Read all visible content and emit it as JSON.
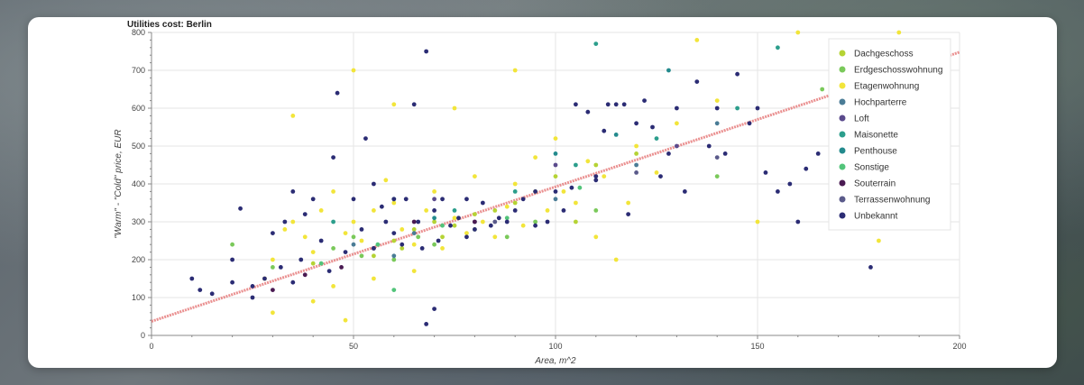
{
  "chart_data": {
    "type": "scatter",
    "title": "Utilities cost: Berlin",
    "xlabel": "Area, m^2",
    "ylabel": "\"Warm\" - \"Cold\" price, EUR",
    "xlim": [
      0,
      200
    ],
    "ylim": [
      0,
      800
    ],
    "x_ticks": [
      "0",
      "50",
      "100",
      "150",
      "200"
    ],
    "y_ticks": [
      "0",
      "100",
      "200",
      "300",
      "400",
      "500",
      "600",
      "700",
      "800"
    ],
    "grid": true,
    "legend_position": "top-right",
    "trendline": {
      "x": [
        0,
        200
      ],
      "y": [
        37,
        748
      ],
      "color": "#e36b6b"
    },
    "series": [
      {
        "name": "Dachgeschoss",
        "color": "#b5d334",
        "points": [
          [
            40,
            190
          ],
          [
            55,
            210
          ],
          [
            60,
            250
          ],
          [
            65,
            280
          ],
          [
            70,
            300
          ],
          [
            75,
            290
          ],
          [
            80,
            320
          ],
          [
            90,
            350
          ],
          [
            95,
            380
          ],
          [
            100,
            420
          ],
          [
            110,
            450
          ],
          [
            120,
            480
          ],
          [
            62,
            230
          ],
          [
            72,
            260
          ],
          [
            85,
            330
          ],
          [
            105,
            300
          ]
        ]
      },
      {
        "name": "Erdgeschosswohnung",
        "color": "#7ac95a",
        "points": [
          [
            20,
            240
          ],
          [
            30,
            180
          ],
          [
            45,
            230
          ],
          [
            50,
            260
          ],
          [
            60,
            200
          ],
          [
            70,
            240
          ],
          [
            80,
            280
          ],
          [
            95,
            300
          ],
          [
            110,
            330
          ],
          [
            140,
            420
          ],
          [
            166,
            650
          ],
          [
            52,
            210
          ],
          [
            66,
            260
          ],
          [
            88,
            260
          ]
        ]
      },
      {
        "name": "Etagenwohnung",
        "color": "#f2e53a",
        "points": [
          [
            28,
            150
          ],
          [
            30,
            200
          ],
          [
            33,
            280
          ],
          [
            35,
            300
          ],
          [
            38,
            260
          ],
          [
            40,
            220
          ],
          [
            42,
            330
          ],
          [
            45,
            380
          ],
          [
            48,
            270
          ],
          [
            50,
            300
          ],
          [
            52,
            250
          ],
          [
            55,
            330
          ],
          [
            58,
            410
          ],
          [
            60,
            350
          ],
          [
            62,
            280
          ],
          [
            65,
            240
          ],
          [
            68,
            330
          ],
          [
            70,
            380
          ],
          [
            72,
            230
          ],
          [
            75,
            310
          ],
          [
            78,
            270
          ],
          [
            80,
            420
          ],
          [
            82,
            300
          ],
          [
            85,
            260
          ],
          [
            88,
            340
          ],
          [
            90,
            400
          ],
          [
            92,
            290
          ],
          [
            95,
            470
          ],
          [
            98,
            330
          ],
          [
            100,
            520
          ],
          [
            102,
            380
          ],
          [
            105,
            350
          ],
          [
            108,
            460
          ],
          [
            110,
            260
          ],
          [
            112,
            420
          ],
          [
            115,
            200
          ],
          [
            118,
            350
          ],
          [
            120,
            500
          ],
          [
            125,
            430
          ],
          [
            130,
            560
          ],
          [
            135,
            780
          ],
          [
            140,
            620
          ],
          [
            150,
            300
          ],
          [
            160,
            800
          ],
          [
            180,
            250
          ],
          [
            185,
            800
          ],
          [
            35,
            580
          ],
          [
            50,
            700
          ],
          [
            60,
            610
          ],
          [
            75,
            600
          ],
          [
            90,
            700
          ],
          [
            45,
            130
          ],
          [
            55,
            150
          ],
          [
            65,
            170
          ],
          [
            40,
            90
          ],
          [
            30,
            60
          ],
          [
            48,
            40
          ]
        ]
      },
      {
        "name": "Hochparterre",
        "color": "#4a7c96",
        "points": [
          [
            50,
            240
          ],
          [
            65,
            270
          ],
          [
            80,
            300
          ],
          [
            100,
            360
          ],
          [
            120,
            450
          ],
          [
            140,
            560
          ],
          [
            60,
            210
          ]
        ]
      },
      {
        "name": "Loft",
        "color": "#5a4a8c",
        "points": [
          [
            70,
            360
          ],
          [
            100,
            450
          ],
          [
            130,
            500
          ]
        ]
      },
      {
        "name": "Maisonette",
        "color": "#2c9e8c",
        "points": [
          [
            45,
            300
          ],
          [
            60,
            360
          ],
          [
            75,
            330
          ],
          [
            90,
            380
          ],
          [
            105,
            450
          ],
          [
            125,
            520
          ],
          [
            145,
            600
          ],
          [
            155,
            760
          ],
          [
            110,
            770
          ]
        ]
      },
      {
        "name": "Penthouse",
        "color": "#238a8d",
        "points": [
          [
            70,
            310
          ],
          [
            100,
            480
          ],
          [
            115,
            530
          ],
          [
            128,
            700
          ]
        ]
      },
      {
        "name": "Sonstige",
        "color": "#52c47a",
        "points": [
          [
            42,
            190
          ],
          [
            56,
            240
          ],
          [
            72,
            290
          ],
          [
            88,
            310
          ],
          [
            106,
            390
          ],
          [
            60,
            120
          ]
        ]
      },
      {
        "name": "Souterrain",
        "color": "#4a1a52",
        "points": [
          [
            30,
            120
          ],
          [
            38,
            160
          ],
          [
            47,
            180
          ],
          [
            55,
            230
          ],
          [
            65,
            300
          ],
          [
            80,
            300
          ]
        ]
      },
      {
        "name": "Terrassenwohnung",
        "color": "#5a5a8a",
        "points": [
          [
            85,
            300
          ],
          [
            120,
            430
          ],
          [
            140,
            470
          ]
        ]
      },
      {
        "name": "Unbekannt",
        "color": "#2b2c74",
        "points": [
          [
            10,
            150
          ],
          [
            12,
            120
          ],
          [
            15,
            110
          ],
          [
            20,
            140
          ],
          [
            22,
            335
          ],
          [
            25,
            130
          ],
          [
            28,
            150
          ],
          [
            30,
            270
          ],
          [
            32,
            180
          ],
          [
            33,
            300
          ],
          [
            35,
            140
          ],
          [
            37,
            200
          ],
          [
            38,
            320
          ],
          [
            40,
            360
          ],
          [
            42,
            250
          ],
          [
            44,
            170
          ],
          [
            45,
            470
          ],
          [
            46,
            640
          ],
          [
            48,
            220
          ],
          [
            50,
            360
          ],
          [
            52,
            280
          ],
          [
            53,
            520
          ],
          [
            55,
            230
          ],
          [
            57,
            340
          ],
          [
            58,
            300
          ],
          [
            60,
            270
          ],
          [
            62,
            240
          ],
          [
            63,
            360
          ],
          [
            65,
            610
          ],
          [
            66,
            300
          ],
          [
            67,
            230
          ],
          [
            68,
            750
          ],
          [
            70,
            330
          ],
          [
            71,
            250
          ],
          [
            72,
            360
          ],
          [
            74,
            290
          ],
          [
            76,
            310
          ],
          [
            78,
            260
          ],
          [
            80,
            280
          ],
          [
            82,
            350
          ],
          [
            84,
            290
          ],
          [
            86,
            310
          ],
          [
            88,
            300
          ],
          [
            90,
            330
          ],
          [
            92,
            360
          ],
          [
            95,
            290
          ],
          [
            98,
            300
          ],
          [
            100,
            380
          ],
          [
            102,
            330
          ],
          [
            104,
            390
          ],
          [
            105,
            610
          ],
          [
            108,
            590
          ],
          [
            110,
            410
          ],
          [
            112,
            540
          ],
          [
            113,
            610
          ],
          [
            115,
            610
          ],
          [
            117,
            610
          ],
          [
            118,
            320
          ],
          [
            120,
            560
          ],
          [
            122,
            620
          ],
          [
            124,
            550
          ],
          [
            126,
            420
          ],
          [
            128,
            480
          ],
          [
            130,
            600
          ],
          [
            132,
            380
          ],
          [
            135,
            670
          ],
          [
            138,
            500
          ],
          [
            140,
            600
          ],
          [
            142,
            480
          ],
          [
            145,
            690
          ],
          [
            148,
            560
          ],
          [
            150,
            600
          ],
          [
            152,
            430
          ],
          [
            155,
            380
          ],
          [
            158,
            400
          ],
          [
            160,
            300
          ],
          [
            162,
            440
          ],
          [
            165,
            480
          ],
          [
            170,
            520
          ],
          [
            178,
            180
          ],
          [
            20,
            200
          ],
          [
            25,
            100
          ],
          [
            35,
            380
          ],
          [
            55,
            400
          ],
          [
            70,
            70
          ],
          [
            68,
            30
          ],
          [
            78,
            360
          ],
          [
            95,
            380
          ],
          [
            110,
            420
          ],
          [
            60,
            360
          ]
        ]
      }
    ]
  }
}
